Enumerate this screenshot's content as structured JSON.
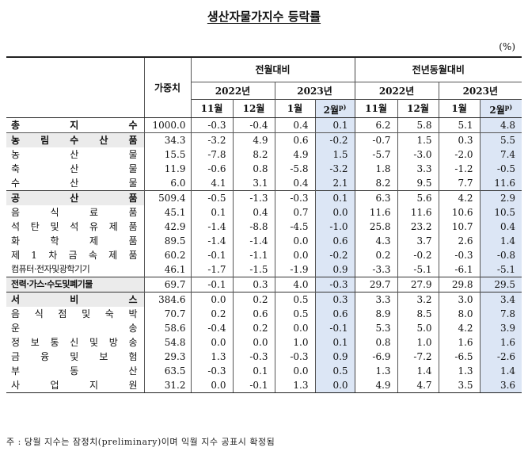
{
  "title": "생산자물가지수 등락률",
  "unit": "(%)",
  "headers": {
    "weight": "가중치",
    "mom": "전월대비",
    "yoy": "전년동월대비",
    "y2022": "2022년",
    "y2023": "2023년",
    "m11": "11월",
    "m12": "12월",
    "m1": "1월",
    "m2": "2월",
    "m2_sup": "p)"
  },
  "rows": [
    {
      "label": "총 지 수",
      "weight": "1000.0",
      "v": [
        "-0.3",
        "-0.4",
        "0.4",
        "0.1",
        "6.2",
        "5.8",
        "5.1",
        "4.8"
      ]
    },
    {
      "label": "농 림 수 산 품",
      "weight": "34.3",
      "v": [
        "-3.2",
        "4.9",
        "0.6",
        "-0.2",
        "-0.7",
        "1.5",
        "0.3",
        "5.5"
      ]
    },
    {
      "label": "농 산 물",
      "weight": "15.5",
      "v": [
        "-7.8",
        "8.2",
        "4.9",
        "1.5",
        "-5.7",
        "-3.0",
        "-2.0",
        "7.4"
      ]
    },
    {
      "label": "축 산 물",
      "weight": "11.9",
      "v": [
        "-0.6",
        "0.8",
        "-5.8",
        "-3.2",
        "1.8",
        "3.3",
        "-1.2",
        "-0.5"
      ]
    },
    {
      "label": "수 산 물",
      "weight": "6.0",
      "v": [
        "4.1",
        "3.1",
        "0.4",
        "2.1",
        "8.2",
        "9.5",
        "7.7",
        "11.6"
      ]
    },
    {
      "label": "공 산 품",
      "weight": "509.4",
      "v": [
        "-0.5",
        "-1.3",
        "-0.3",
        "0.1",
        "6.3",
        "5.6",
        "4.2",
        "2.9"
      ]
    },
    {
      "label": "음 식 료 품",
      "weight": "45.1",
      "v": [
        "0.1",
        "0.4",
        "0.7",
        "0.0",
        "11.6",
        "11.6",
        "10.6",
        "10.5"
      ]
    },
    {
      "label": "석 탄 및 석 유 제 품",
      "weight": "42.9",
      "v": [
        "-1.4",
        "-8.8",
        "-4.5",
        "-1.0",
        "25.8",
        "23.2",
        "10.7",
        "0.4"
      ]
    },
    {
      "label": "화 학 제 품",
      "weight": "89.5",
      "v": [
        "-1.4",
        "-1.4",
        "0.0",
        "0.6",
        "4.3",
        "3.7",
        "2.6",
        "1.4"
      ]
    },
    {
      "label": "제 1 차 금 속 제 품",
      "weight": "60.2",
      "v": [
        "-0.1",
        "-1.1",
        "0.0",
        "-0.2",
        "0.2",
        "-0.2",
        "-0.3",
        "-0.8"
      ]
    },
    {
      "label": "컴퓨터·전자및광학기기",
      "weight": "46.1",
      "v": [
        "-1.7",
        "-1.5",
        "-1.9",
        "0.9",
        "-3.3",
        "-5.1",
        "-6.1",
        "-5.1"
      ]
    },
    {
      "label": "전력·가스·수도및폐기물",
      "weight": "69.7",
      "v": [
        "-0.1",
        "0.3",
        "4.0",
        "-0.3",
        "29.7",
        "27.9",
        "29.8",
        "29.5"
      ]
    },
    {
      "label": "서 비 스",
      "weight": "384.6",
      "v": [
        "0.0",
        "0.2",
        "0.5",
        "0.3",
        "3.3",
        "3.2",
        "3.0",
        "3.4"
      ]
    },
    {
      "label": "음 식 점 및 숙 박",
      "weight": "70.7",
      "v": [
        "0.2",
        "0.6",
        "0.5",
        "0.6",
        "8.9",
        "8.5",
        "8.0",
        "7.8"
      ]
    },
    {
      "label": "운 송",
      "weight": "58.6",
      "v": [
        "-0.4",
        "0.2",
        "0.0",
        "-0.1",
        "5.3",
        "5.0",
        "4.2",
        "3.9"
      ]
    },
    {
      "label": "정 보 통 신 및 방 송",
      "weight": "54.8",
      "v": [
        "0.0",
        "0.0",
        "1.0",
        "0.1",
        "0.8",
        "1.0",
        "1.6",
        "1.6"
      ]
    },
    {
      "label": "금 융 및 보 험",
      "weight": "29.3",
      "v": [
        "1.3",
        "-0.3",
        "-0.3",
        "0.9",
        "-6.9",
        "-7.2",
        "-6.5",
        "-2.6"
      ]
    },
    {
      "label": "부 동 산",
      "weight": "63.5",
      "v": [
        "-0.3",
        "0.1",
        "0.0",
        "0.5",
        "1.3",
        "1.4",
        "1.3",
        "1.4"
      ]
    },
    {
      "label": "사 업 지 원",
      "weight": "31.2",
      "v": [
        "0.0",
        "-0.1",
        "1.3",
        "0.0",
        "4.9",
        "4.7",
        "3.5",
        "3.6"
      ]
    }
  ],
  "footnote": "주 : 당월 지수는 잠정치(preliminary)이며 익월 지수 공표시 확정됨"
}
